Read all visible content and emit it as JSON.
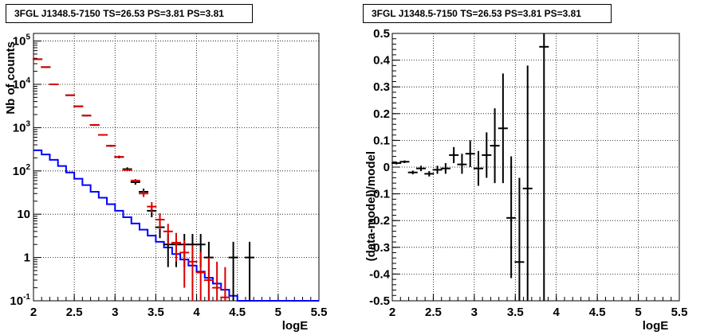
{
  "chart_data": [
    {
      "type": "histogram",
      "title": "3FGL J1348.5-7150 TS=26.53 PS=3.81 PS=3.81",
      "xlabel": "logE",
      "ylabel": "Nb of counts",
      "y_scale": "log",
      "xlim": [
        2,
        5.5
      ],
      "ylim": [
        0.1,
        150000
      ],
      "grid": true,
      "x_ticks": [
        "2",
        "2.5",
        "3",
        "3.5",
        "4",
        "4.5",
        "5",
        "5.5"
      ],
      "y_ticks": [
        "10^-1",
        "1",
        "10",
        "10^2",
        "10^3",
        "10^4",
        "10^5"
      ],
      "bin_edges": [
        2.0,
        2.1,
        2.2,
        2.3,
        2.4,
        2.5,
        2.6,
        2.7,
        2.8,
        2.9,
        3.0,
        3.1,
        3.2,
        3.3,
        3.4,
        3.5,
        3.6,
        3.7,
        3.8,
        3.9,
        4.0,
        4.1,
        4.2,
        4.3,
        4.4,
        4.5,
        4.6,
        4.7,
        4.8,
        4.9,
        5.0,
        5.1,
        5.2,
        5.3,
        5.4,
        5.5
      ],
      "series": [
        {
          "style": "step",
          "color": "#0000ff",
          "values": [
            300,
            240,
            180,
            130,
            92,
            66,
            47,
            33,
            24,
            17,
            12,
            8.5,
            6.1,
            4.4,
            3.2,
            2.3,
            1.7,
            1.2,
            0.9,
            0.65,
            0.47,
            0.34,
            0.25,
            0.18,
            0.13,
            0.1,
            0.1,
            0.1,
            0.1,
            0.1,
            0.1,
            0.1,
            0.1,
            0.1,
            0.1
          ]
        },
        {
          "style": "points",
          "color": "#000000",
          "points": [
            {
              "x": 2.05,
              "y": 38000,
              "lo": 37500,
              "hi": 38500
            },
            {
              "x": 2.15,
              "y": 25000,
              "lo": 24600,
              "hi": 25400
            },
            {
              "x": 2.25,
              "y": 10000,
              "lo": 9800,
              "hi": 10200
            },
            {
              "x": 2.45,
              "y": 5600,
              "lo": 5450,
              "hi": 5750
            },
            {
              "x": 2.55,
              "y": 3100,
              "lo": 3000,
              "hi": 3200
            },
            {
              "x": 2.65,
              "y": 1900,
              "lo": 1830,
              "hi": 1970
            },
            {
              "x": 2.75,
              "y": 1150,
              "lo": 1100,
              "hi": 1200
            },
            {
              "x": 2.85,
              "y": 680,
              "lo": 650,
              "hi": 710
            },
            {
              "x": 2.95,
              "y": 380,
              "lo": 360,
              "hi": 400
            },
            {
              "x": 3.05,
              "y": 210,
              "lo": 195,
              "hi": 225
            },
            {
              "x": 3.15,
              "y": 110,
              "lo": 100,
              "hi": 121
            },
            {
              "x": 3.25,
              "y": 55,
              "lo": 48,
              "hi": 62
            },
            {
              "x": 3.35,
              "y": 33,
              "lo": 27,
              "hi": 39
            },
            {
              "x": 3.45,
              "y": 12,
              "lo": 8.5,
              "hi": 15.5
            },
            {
              "x": 3.55,
              "y": 5,
              "lo": 2.8,
              "hi": 7.3
            },
            {
              "x": 3.65,
              "y": 2,
              "lo": 0.6,
              "hi": 3.5
            },
            {
              "x": 3.75,
              "y": 2,
              "lo": 0.6,
              "hi": 3.5
            },
            {
              "x": 3.85,
              "y": 2,
              "lo": 0.6,
              "hi": 3.5
            },
            {
              "x": 3.95,
              "y": 2,
              "lo": 0.6,
              "hi": 3.5
            },
            {
              "x": 4.05,
              "y": 2,
              "lo": 0.6,
              "hi": 3.5
            },
            {
              "x": 4.15,
              "y": 1,
              "lo": 0.1,
              "hi": 2.3
            },
            {
              "x": 4.45,
              "y": 1,
              "lo": 0.1,
              "hi": 2.3
            },
            {
              "x": 4.65,
              "y": 1,
              "lo": 0.1,
              "hi": 2.3
            }
          ]
        },
        {
          "style": "points",
          "color": "#dd0000",
          "points": [
            {
              "x": 2.05,
              "y": 38000,
              "lo": 37800,
              "hi": 38200
            },
            {
              "x": 2.15,
              "y": 25000,
              "lo": 24800,
              "hi": 25200
            },
            {
              "x": 2.25,
              "y": 10000,
              "lo": 9900,
              "hi": 10100
            },
            {
              "x": 2.45,
              "y": 5600,
              "lo": 5520,
              "hi": 5680
            },
            {
              "x": 2.55,
              "y": 3100,
              "lo": 3050,
              "hi": 3150
            },
            {
              "x": 2.65,
              "y": 1900,
              "lo": 1870,
              "hi": 1930
            },
            {
              "x": 2.75,
              "y": 1150,
              "lo": 1130,
              "hi": 1170
            },
            {
              "x": 2.85,
              "y": 680,
              "lo": 667,
              "hi": 693
            },
            {
              "x": 2.95,
              "y": 380,
              "lo": 372,
              "hi": 388
            },
            {
              "x": 3.05,
              "y": 210,
              "lo": 205,
              "hi": 215
            },
            {
              "x": 3.15,
              "y": 105,
              "lo": 100,
              "hi": 110
            },
            {
              "x": 3.25,
              "y": 60,
              "lo": 55,
              "hi": 65
            },
            {
              "x": 3.35,
              "y": 30,
              "lo": 25,
              "hi": 35
            },
            {
              "x": 3.45,
              "y": 15,
              "lo": 11,
              "hi": 19
            },
            {
              "x": 3.55,
              "y": 7.5,
              "lo": 4.5,
              "hi": 10.5
            },
            {
              "x": 3.65,
              "y": 4,
              "lo": 2.0,
              "hi": 6.0
            },
            {
              "x": 3.75,
              "y": 2.2,
              "lo": 0.8,
              "hi": 3.7
            },
            {
              "x": 3.85,
              "y": 1.3,
              "lo": 0.2,
              "hi": 2.5
            },
            {
              "x": 3.95,
              "y": 0.8,
              "lo": 0.1,
              "hi": 1.9
            },
            {
              "x": 4.05,
              "y": 0.45,
              "lo": 0.1,
              "hi": 1.35
            },
            {
              "x": 4.15,
              "y": 0.3,
              "lo": 0.1,
              "hi": 1.0
            },
            {
              "x": 4.25,
              "y": 0.2,
              "lo": 0.1,
              "hi": 0.8
            },
            {
              "x": 4.35,
              "y": 0.12,
              "lo": 0.1,
              "hi": 0.6
            }
          ]
        }
      ]
    },
    {
      "type": "scatter",
      "title": "3FGL J1348.5-7150 TS=26.53 PS=3.81 PS=3.81",
      "xlabel": "logE",
      "ylabel": "(data-model)/model",
      "xlim": [
        2,
        5.5
      ],
      "ylim": [
        -0.5,
        0.5
      ],
      "grid": true,
      "x_ticks": [
        "2",
        "2.5",
        "3",
        "3.5",
        "4",
        "4.5",
        "5",
        "5.5"
      ],
      "y_ticks": [
        "-0.5",
        "-0.4",
        "-0.3",
        "-0.2",
        "-0.1",
        "0",
        "0.1",
        "0.2",
        "0.3",
        "0.4",
        "0.5"
      ],
      "series": [
        {
          "color": "#000000",
          "points": [
            {
              "x": 2.05,
              "y": 0.015,
              "lo": 0.01,
              "hi": 0.02
            },
            {
              "x": 2.15,
              "y": 0.02,
              "lo": 0.015,
              "hi": 0.025
            },
            {
              "x": 2.25,
              "y": -0.02,
              "lo": -0.027,
              "hi": -0.013
            },
            {
              "x": 2.35,
              "y": -0.005,
              "lo": -0.015,
              "hi": 0.005
            },
            {
              "x": 2.45,
              "y": -0.025,
              "lo": -0.035,
              "hi": -0.015
            },
            {
              "x": 2.55,
              "y": -0.01,
              "lo": -0.025,
              "hi": 0.005
            },
            {
              "x": 2.65,
              "y": -0.005,
              "lo": -0.025,
              "hi": 0.015
            },
            {
              "x": 2.75,
              "y": 0.045,
              "lo": 0.015,
              "hi": 0.075
            },
            {
              "x": 2.85,
              "y": 0.01,
              "lo": -0.025,
              "hi": 0.05
            },
            {
              "x": 2.95,
              "y": 0.05,
              "lo": 0.0,
              "hi": 0.1
            },
            {
              "x": 3.05,
              "y": -0.005,
              "lo": -0.07,
              "hi": 0.06
            },
            {
              "x": 3.15,
              "y": 0.045,
              "lo": -0.04,
              "hi": 0.13
            },
            {
              "x": 3.25,
              "y": 0.08,
              "lo": -0.06,
              "hi": 0.22
            },
            {
              "x": 3.35,
              "y": 0.145,
              "lo": -0.06,
              "hi": 0.35
            },
            {
              "x": 3.45,
              "y": -0.19,
              "lo": -0.415,
              "hi": 0.04
            },
            {
              "x": 3.55,
              "y": -0.355,
              "lo": -0.5,
              "hi": -0.04
            },
            {
              "x": 3.65,
              "y": -0.08,
              "lo": -0.5,
              "hi": 0.38
            },
            {
              "x": 3.85,
              "y": 0.45,
              "lo": -0.5,
              "hi": 0.5
            }
          ]
        }
      ]
    }
  ]
}
